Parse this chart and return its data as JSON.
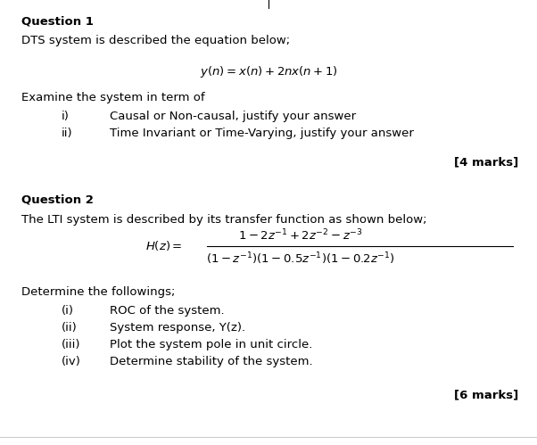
{
  "bg_color": "#ffffff",
  "q1_title": "Question 1",
  "q1_desc": "DTS system is described the equation below;",
  "q1_examine": "Examine the system in term of",
  "q1_i": "i)",
  "q1_i_text": "Causal or Non-causal, justify your answer",
  "q1_ii": "ii)",
  "q1_ii_text": "Time Invariant or Time-Varying, justify your answer",
  "q1_marks": "[4 marks]",
  "q2_title": "Question 2",
  "q2_desc": "The LTI system is described by its transfer function as shown below;",
  "q2_numerator": "$1 - 2z^{-1} + 2z^{-2} - z^{-3}$",
  "q2_denominator": "$(1 - z^{-1})(1 - 0.5z^{-1})(1 - 0.2z^{-1})$",
  "q2_determine": "Determine the followings;",
  "q2_i": "(i)",
  "q2_i_text": "ROC of the system.",
  "q2_ii": "(ii)",
  "q2_ii_text": "System response, Y(z).",
  "q2_iii": "(iii)",
  "q2_iii_text": "Plot the system pole in unit circle.",
  "q2_iv": "(iv)",
  "q2_iv_text": "Determine stability of the system.",
  "q2_marks": "[6 marks]",
  "fs": 9.5,
  "fs_title": 9.5,
  "fs_eq": 9.5,
  "fs_marks": 9.5
}
